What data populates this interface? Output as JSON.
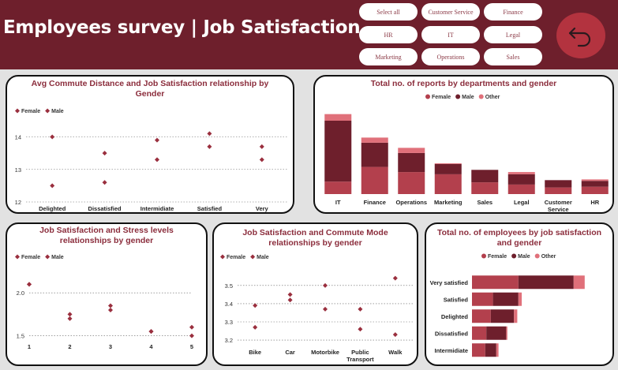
{
  "header": {
    "title": "Employees survey | Job Satisfaction",
    "background": "#6e1f2c",
    "slicers": [
      "Select all",
      "Customer Service",
      "Finance",
      "HR",
      "IT",
      "Legal",
      "Marketing",
      "Operations",
      "Sales"
    ],
    "back_icon": "undo-arrow-icon"
  },
  "colors": {
    "female": "#b3404d",
    "male": "#6e1f2c",
    "other": "#e0707a",
    "marker": "#9a2f3e"
  },
  "charts": {
    "commute": {
      "title": "Avg Commute Distance and Job Satisfaction relationship by Gender",
      "legend": [
        "Female",
        "Male"
      ]
    },
    "reports": {
      "title": "Total no. of reports by departments and gender",
      "legend": [
        "Female",
        "Male",
        "Other"
      ]
    },
    "stress": {
      "title": "Job Satisfaction and Stress levels relationships by gender",
      "legend": [
        "Female",
        "Male"
      ]
    },
    "mode": {
      "title": "Job Satisfaction and Commute Mode relationships by gender",
      "legend": [
        "Female",
        "Male"
      ]
    },
    "employees": {
      "title": "Total no. of employees by job satisfaction and gender",
      "legend": [
        "Female",
        "Male",
        "Other"
      ]
    }
  },
  "chart_data": [
    {
      "type": "scatter",
      "title": "Avg Commute Distance and Job Satisfaction relationship by Gender",
      "categories": [
        "Delighted",
        "Dissatisfied",
        "Intermidiate",
        "Satisfied",
        "Very satisfied"
      ],
      "yticks": [
        "12",
        "13",
        "14"
      ],
      "ylim": [
        12,
        14.4
      ],
      "grid": true,
      "legend_position": "top-left",
      "series": [
        {
          "name": "Female",
          "values": [
            14.0,
            13.5,
            13.3,
            14.1,
            13.7
          ]
        },
        {
          "name": "Male",
          "values": [
            12.5,
            12.6,
            13.9,
            13.7,
            13.3
          ]
        }
      ]
    },
    {
      "type": "bar",
      "stacked": true,
      "title": "Total no. of reports by departments and gender",
      "categories": [
        "IT",
        "Finance",
        "Operations",
        "Marketing",
        "Sales",
        "Legal",
        "Customer Service",
        "HR"
      ],
      "legend_position": "top",
      "series": [
        {
          "name": "Female",
          "values": [
            17,
            37,
            30,
            27,
            16,
            13,
            9,
            10
          ]
        },
        {
          "name": "Male",
          "values": [
            83,
            33,
            26,
            14,
            17,
            14,
            10,
            8
          ]
        },
        {
          "name": "Other",
          "values": [
            9,
            7,
            7,
            1,
            0,
            3,
            0,
            2
          ]
        }
      ]
    },
    {
      "type": "scatter",
      "title": "Job Satisfaction and Stress levels relationships by gender",
      "x": [
        1,
        2,
        3,
        4,
        5
      ],
      "yticks": [
        "1.5",
        "2.0"
      ],
      "ylim": [
        1.45,
        2.25
      ],
      "grid": true,
      "legend_position": "top-left",
      "series": [
        {
          "name": "Female",
          "values": [
            2.1,
            1.7,
            1.8,
            1.55,
            1.5
          ]
        },
        {
          "name": "Male",
          "values": [
            2.1,
            1.75,
            1.85,
            1.55,
            1.6
          ]
        }
      ]
    },
    {
      "type": "scatter",
      "title": "Job Satisfaction and Commute Mode relationships by gender",
      "categories": [
        "Bike",
        "Car",
        "Motorbike",
        "Public Transport",
        "Walk"
      ],
      "yticks": [
        "3.2",
        "3.3",
        "3.4",
        "3.5"
      ],
      "ylim": [
        3.17,
        3.56
      ],
      "grid": true,
      "legend_position": "top-left",
      "series": [
        {
          "name": "Female",
          "values": [
            3.39,
            3.45,
            3.37,
            3.26,
            3.54
          ]
        },
        {
          "name": "Male",
          "values": [
            3.27,
            3.42,
            3.5,
            3.37,
            3.23
          ]
        }
      ]
    },
    {
      "type": "bar",
      "orientation": "horizontal",
      "stacked": true,
      "title": "Total no. of employees by job satisfaction and gender",
      "categories": [
        "Very satisfied",
        "Satisfied",
        "Delighted",
        "Dissatisfied",
        "Intermidiate"
      ],
      "legend_position": "top",
      "series": [
        {
          "name": "Female",
          "values": [
            42,
            19,
            17,
            13,
            12
          ]
        },
        {
          "name": "Male",
          "values": [
            50,
            23,
            21,
            18,
            10
          ]
        },
        {
          "name": "Other",
          "values": [
            10,
            3,
            3,
            1,
            2
          ]
        }
      ]
    }
  ]
}
